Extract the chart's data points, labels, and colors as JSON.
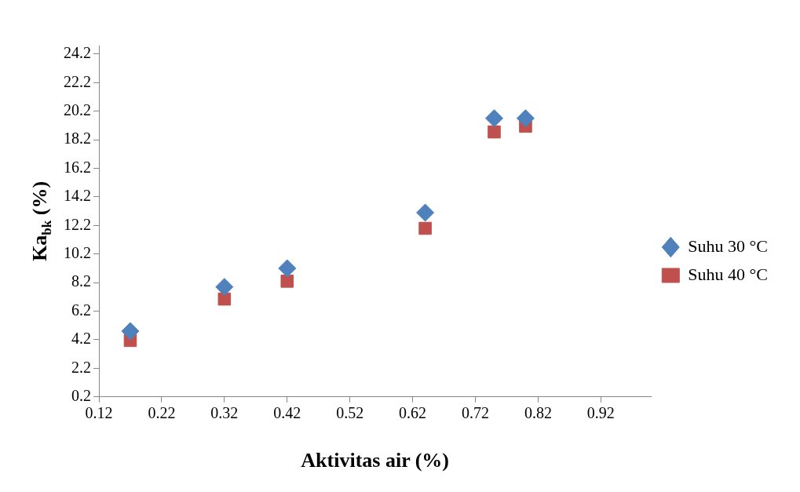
{
  "chart_data": {
    "type": "scatter",
    "xlabel": "Aktivitas air (%)",
    "ylabel": "Ka$_{bk}$ (%)",
    "xlim": [
      0.12,
      1.0
    ],
    "xticks": [
      0.12,
      0.22,
      0.32,
      0.42,
      0.52,
      0.62,
      0.72,
      0.82,
      0.92
    ],
    "ylim": [
      0.2,
      24.8
    ],
    "yticks": [
      0.2,
      2.2,
      4.2,
      6.2,
      8.2,
      10.2,
      12.2,
      14.2,
      16.2,
      18.2,
      20.2,
      22.2,
      24.2
    ],
    "grid": false,
    "legend": "right",
    "series": [
      {
        "name": "Suhu 30 °C",
        "color": "#4f81bd",
        "marker": "diamond",
        "x": [
          0.17,
          0.32,
          0.42,
          0.64,
          0.75,
          0.8
        ],
        "values": [
          4.8,
          7.9,
          9.2,
          13.1,
          19.7,
          19.7
        ]
      },
      {
        "name": "Suhu 40 °C",
        "color": "#c0504d",
        "marker": "square",
        "x": [
          0.17,
          0.32,
          0.42,
          0.64,
          0.75,
          0.8
        ],
        "values": [
          4.15,
          7.05,
          8.3,
          12.0,
          18.75,
          19.15
        ]
      }
    ]
  }
}
